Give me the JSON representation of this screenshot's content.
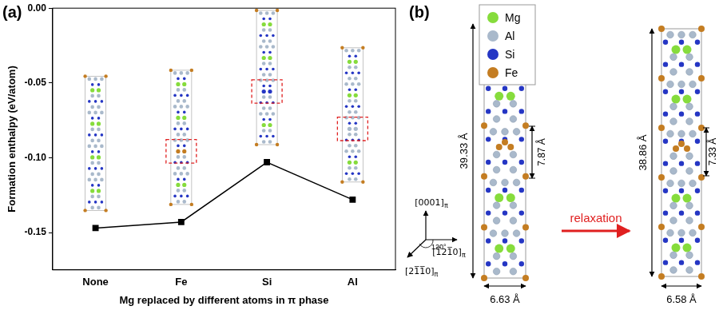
{
  "chart_data": {
    "type": "line",
    "panel_label": "(a)",
    "x_label": "Mg replaced by different atoms in π phase",
    "y_label": "Formation enthalpy (eV/atom)",
    "categories": [
      "None",
      "Fe",
      "Si",
      "Al"
    ],
    "values": [
      -0.147,
      -0.143,
      -0.103,
      -0.128
    ],
    "color": "#000000",
    "marker": "square",
    "line_style": "solid",
    "ylim": [
      -0.175,
      0
    ],
    "yticks": [
      -0.15,
      {
        "value": -0.1,
        "label": "-0.10"
      },
      -0.05,
      {
        "value": 0,
        "label": "0.00"
      }
    ],
    "grid": false
  },
  "diagram": {
    "panel_label": "(b)",
    "legend": [
      {
        "label": "Mg",
        "color": "#86dc3c"
      },
      {
        "label": "Al",
        "color": "#a9b9cb"
      },
      {
        "label": "Si",
        "color": "#2536c4"
      },
      {
        "label": "Fe",
        "color": "#c47d22"
      }
    ],
    "cells": [
      {
        "height": "39.33 Å",
        "unit": "7.87 Å",
        "width": "6.63 Å"
      },
      {
        "height": "38.86 Å",
        "unit": "7.33 Å",
        "width": "6.58 Å"
      }
    ],
    "arrow_label": "relaxation",
    "axes": [
      {
        "text": "[0001]",
        "sub": "π"
      },
      {
        "text": "[1̅21̅0]",
        "sub": "π"
      },
      {
        "text": "[21̅1̅0]",
        "sub": "π"
      }
    ],
    "angle": "120°"
  }
}
